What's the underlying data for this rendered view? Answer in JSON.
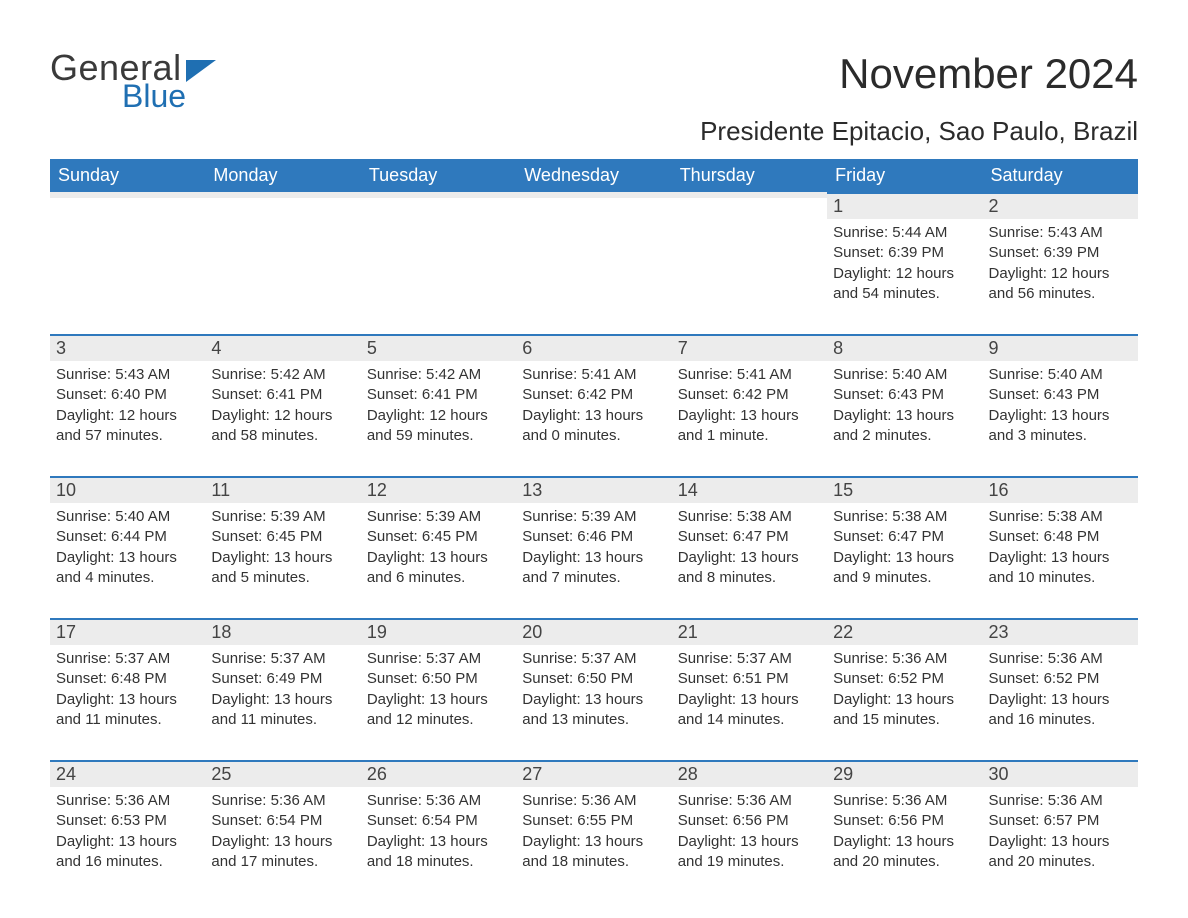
{
  "logo": {
    "word1": "General",
    "word2": "Blue",
    "brand_color": "#1f6fb2"
  },
  "title": "November 2024",
  "location": "Presidente Epitacio, Sao Paulo, Brazil",
  "colors": {
    "header_bg": "#2f79bd",
    "header_text": "#ffffff",
    "daynum_bg": "#ececec",
    "row_border": "#2f79bd",
    "page_bg": "#ffffff",
    "body_text": "#333333"
  },
  "day_headers": [
    "Sunday",
    "Monday",
    "Tuesday",
    "Wednesday",
    "Thursday",
    "Friday",
    "Saturday"
  ],
  "weeks": [
    [
      {
        "day": "",
        "sunrise": "",
        "sunset": "",
        "daylight1": "",
        "daylight2": ""
      },
      {
        "day": "",
        "sunrise": "",
        "sunset": "",
        "daylight1": "",
        "daylight2": ""
      },
      {
        "day": "",
        "sunrise": "",
        "sunset": "",
        "daylight1": "",
        "daylight2": ""
      },
      {
        "day": "",
        "sunrise": "",
        "sunset": "",
        "daylight1": "",
        "daylight2": ""
      },
      {
        "day": "",
        "sunrise": "",
        "sunset": "",
        "daylight1": "",
        "daylight2": ""
      },
      {
        "day": "1",
        "sunrise": "Sunrise: 5:44 AM",
        "sunset": "Sunset: 6:39 PM",
        "daylight1": "Daylight: 12 hours",
        "daylight2": "and 54 minutes."
      },
      {
        "day": "2",
        "sunrise": "Sunrise: 5:43 AM",
        "sunset": "Sunset: 6:39 PM",
        "daylight1": "Daylight: 12 hours",
        "daylight2": "and 56 minutes."
      }
    ],
    [
      {
        "day": "3",
        "sunrise": "Sunrise: 5:43 AM",
        "sunset": "Sunset: 6:40 PM",
        "daylight1": "Daylight: 12 hours",
        "daylight2": "and 57 minutes."
      },
      {
        "day": "4",
        "sunrise": "Sunrise: 5:42 AM",
        "sunset": "Sunset: 6:41 PM",
        "daylight1": "Daylight: 12 hours",
        "daylight2": "and 58 minutes."
      },
      {
        "day": "5",
        "sunrise": "Sunrise: 5:42 AM",
        "sunset": "Sunset: 6:41 PM",
        "daylight1": "Daylight: 12 hours",
        "daylight2": "and 59 minutes."
      },
      {
        "day": "6",
        "sunrise": "Sunrise: 5:41 AM",
        "sunset": "Sunset: 6:42 PM",
        "daylight1": "Daylight: 13 hours",
        "daylight2": "and 0 minutes."
      },
      {
        "day": "7",
        "sunrise": "Sunrise: 5:41 AM",
        "sunset": "Sunset: 6:42 PM",
        "daylight1": "Daylight: 13 hours",
        "daylight2": "and 1 minute."
      },
      {
        "day": "8",
        "sunrise": "Sunrise: 5:40 AM",
        "sunset": "Sunset: 6:43 PM",
        "daylight1": "Daylight: 13 hours",
        "daylight2": "and 2 minutes."
      },
      {
        "day": "9",
        "sunrise": "Sunrise: 5:40 AM",
        "sunset": "Sunset: 6:43 PM",
        "daylight1": "Daylight: 13 hours",
        "daylight2": "and 3 minutes."
      }
    ],
    [
      {
        "day": "10",
        "sunrise": "Sunrise: 5:40 AM",
        "sunset": "Sunset: 6:44 PM",
        "daylight1": "Daylight: 13 hours",
        "daylight2": "and 4 minutes."
      },
      {
        "day": "11",
        "sunrise": "Sunrise: 5:39 AM",
        "sunset": "Sunset: 6:45 PM",
        "daylight1": "Daylight: 13 hours",
        "daylight2": "and 5 minutes."
      },
      {
        "day": "12",
        "sunrise": "Sunrise: 5:39 AM",
        "sunset": "Sunset: 6:45 PM",
        "daylight1": "Daylight: 13 hours",
        "daylight2": "and 6 minutes."
      },
      {
        "day": "13",
        "sunrise": "Sunrise: 5:39 AM",
        "sunset": "Sunset: 6:46 PM",
        "daylight1": "Daylight: 13 hours",
        "daylight2": "and 7 minutes."
      },
      {
        "day": "14",
        "sunrise": "Sunrise: 5:38 AM",
        "sunset": "Sunset: 6:47 PM",
        "daylight1": "Daylight: 13 hours",
        "daylight2": "and 8 minutes."
      },
      {
        "day": "15",
        "sunrise": "Sunrise: 5:38 AM",
        "sunset": "Sunset: 6:47 PM",
        "daylight1": "Daylight: 13 hours",
        "daylight2": "and 9 minutes."
      },
      {
        "day": "16",
        "sunrise": "Sunrise: 5:38 AM",
        "sunset": "Sunset: 6:48 PM",
        "daylight1": "Daylight: 13 hours",
        "daylight2": "and 10 minutes."
      }
    ],
    [
      {
        "day": "17",
        "sunrise": "Sunrise: 5:37 AM",
        "sunset": "Sunset: 6:48 PM",
        "daylight1": "Daylight: 13 hours",
        "daylight2": "and 11 minutes."
      },
      {
        "day": "18",
        "sunrise": "Sunrise: 5:37 AM",
        "sunset": "Sunset: 6:49 PM",
        "daylight1": "Daylight: 13 hours",
        "daylight2": "and 11 minutes."
      },
      {
        "day": "19",
        "sunrise": "Sunrise: 5:37 AM",
        "sunset": "Sunset: 6:50 PM",
        "daylight1": "Daylight: 13 hours",
        "daylight2": "and 12 minutes."
      },
      {
        "day": "20",
        "sunrise": "Sunrise: 5:37 AM",
        "sunset": "Sunset: 6:50 PM",
        "daylight1": "Daylight: 13 hours",
        "daylight2": "and 13 minutes."
      },
      {
        "day": "21",
        "sunrise": "Sunrise: 5:37 AM",
        "sunset": "Sunset: 6:51 PM",
        "daylight1": "Daylight: 13 hours",
        "daylight2": "and 14 minutes."
      },
      {
        "day": "22",
        "sunrise": "Sunrise: 5:36 AM",
        "sunset": "Sunset: 6:52 PM",
        "daylight1": "Daylight: 13 hours",
        "daylight2": "and 15 minutes."
      },
      {
        "day": "23",
        "sunrise": "Sunrise: 5:36 AM",
        "sunset": "Sunset: 6:52 PM",
        "daylight1": "Daylight: 13 hours",
        "daylight2": "and 16 minutes."
      }
    ],
    [
      {
        "day": "24",
        "sunrise": "Sunrise: 5:36 AM",
        "sunset": "Sunset: 6:53 PM",
        "daylight1": "Daylight: 13 hours",
        "daylight2": "and 16 minutes."
      },
      {
        "day": "25",
        "sunrise": "Sunrise: 5:36 AM",
        "sunset": "Sunset: 6:54 PM",
        "daylight1": "Daylight: 13 hours",
        "daylight2": "and 17 minutes."
      },
      {
        "day": "26",
        "sunrise": "Sunrise: 5:36 AM",
        "sunset": "Sunset: 6:54 PM",
        "daylight1": "Daylight: 13 hours",
        "daylight2": "and 18 minutes."
      },
      {
        "day": "27",
        "sunrise": "Sunrise: 5:36 AM",
        "sunset": "Sunset: 6:55 PM",
        "daylight1": "Daylight: 13 hours",
        "daylight2": "and 18 minutes."
      },
      {
        "day": "28",
        "sunrise": "Sunrise: 5:36 AM",
        "sunset": "Sunset: 6:56 PM",
        "daylight1": "Daylight: 13 hours",
        "daylight2": "and 19 minutes."
      },
      {
        "day": "29",
        "sunrise": "Sunrise: 5:36 AM",
        "sunset": "Sunset: 6:56 PM",
        "daylight1": "Daylight: 13 hours",
        "daylight2": "and 20 minutes."
      },
      {
        "day": "30",
        "sunrise": "Sunrise: 5:36 AM",
        "sunset": "Sunset: 6:57 PM",
        "daylight1": "Daylight: 13 hours",
        "daylight2": "and 20 minutes."
      }
    ]
  ]
}
